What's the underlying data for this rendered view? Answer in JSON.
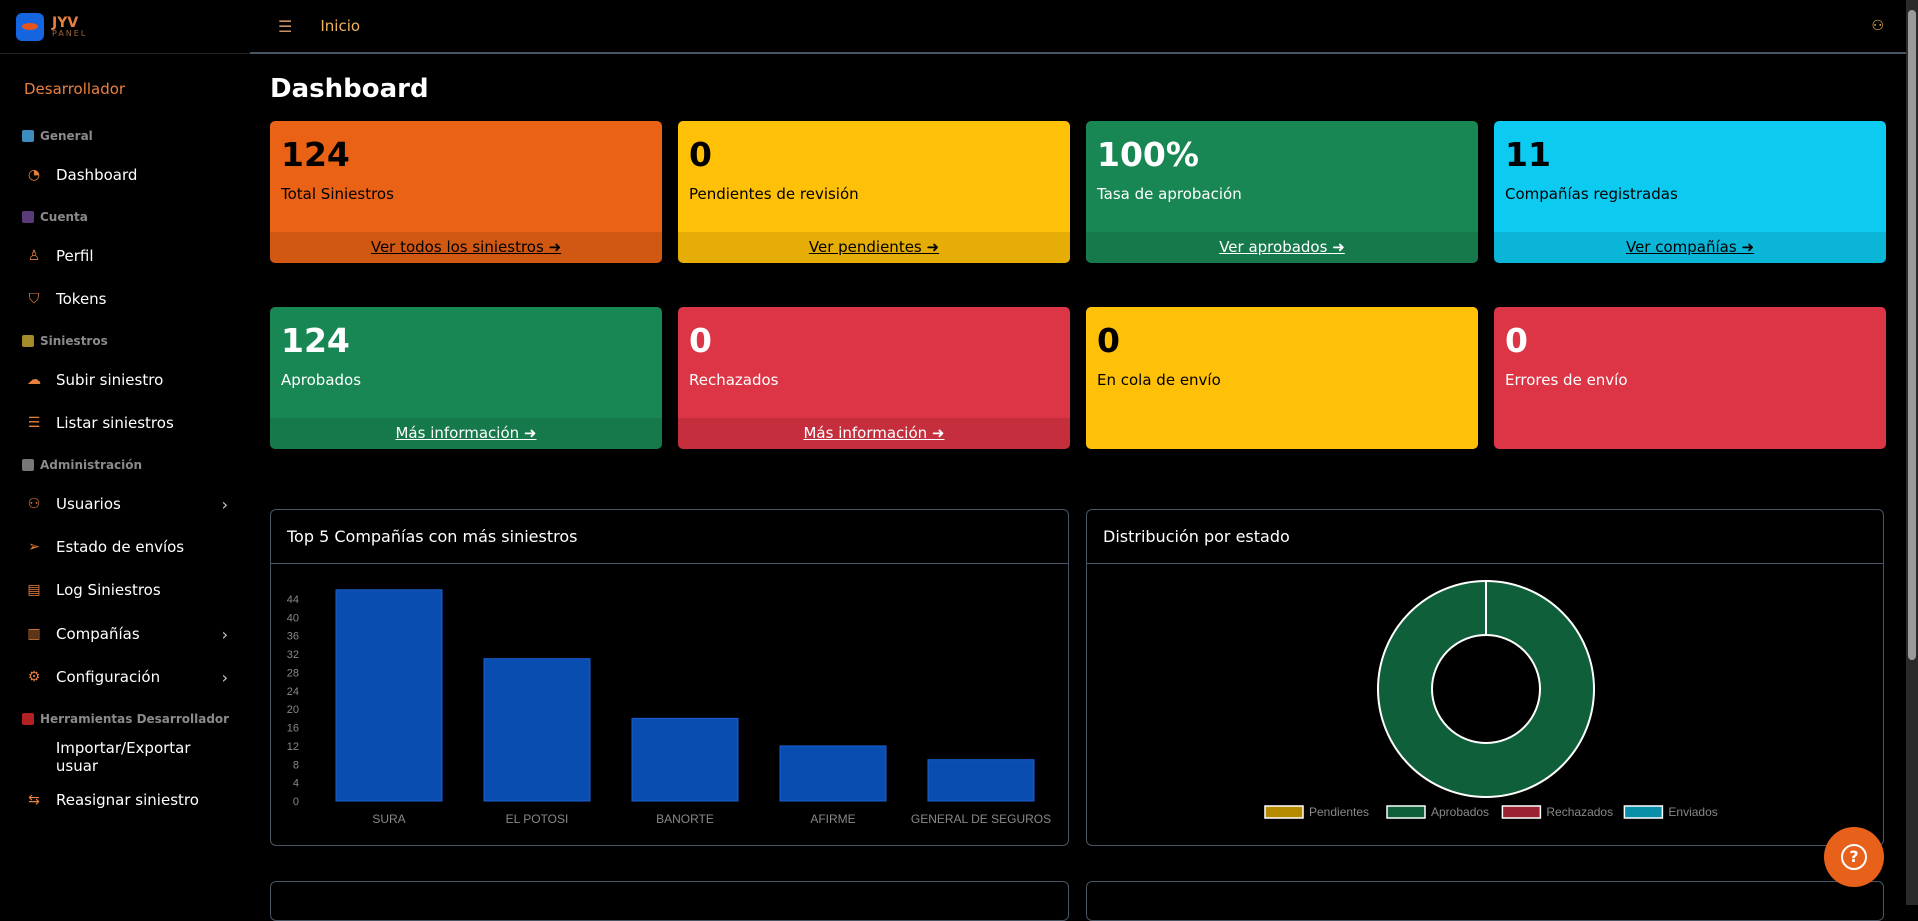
{
  "brand": {
    "title": "JYV",
    "subtitle": "PANEL"
  },
  "sidebar": {
    "role": "Desarrollador",
    "sections": [
      {
        "label": "General",
        "icon": "bar-chart-icon",
        "color": "#3c8dbc"
      },
      {
        "label": "Cuenta",
        "icon": "person-icon",
        "color": "#5b3a7a"
      },
      {
        "label": "Siniestros",
        "icon": "folder-icon",
        "color": "#a58a2a"
      },
      {
        "label": "Administración",
        "icon": "tools-icon",
        "color": "#777777"
      },
      {
        "label": "Herramientas Desarrollador",
        "icon": "toolbox-icon",
        "color": "#b22222"
      }
    ],
    "items": [
      {
        "label": "Dashboard",
        "icon": "speedometer-icon"
      },
      {
        "label": "Perfil",
        "icon": "person-icon"
      },
      {
        "label": "Tokens",
        "icon": "shield-lock-icon"
      },
      {
        "label": "Subir siniestro",
        "icon": "cloud-upload-icon"
      },
      {
        "label": "Listar siniestros",
        "icon": "list-icon"
      },
      {
        "label": "Usuarios",
        "icon": "people-icon",
        "submenu": true
      },
      {
        "label": "Estado de envíos",
        "icon": "send-icon"
      },
      {
        "label": "Log Siniestros",
        "icon": "journal-text-icon"
      },
      {
        "label": "Compañías",
        "icon": "buildings-icon",
        "submenu": true
      },
      {
        "label": "Configuración",
        "icon": "gear-icon",
        "submenu": true
      },
      {
        "label": "Importar/Exportar usuar",
        "icon": "code-icon"
      },
      {
        "label": "Reasignar siniestro",
        "icon": "arrow-left-right-icon"
      }
    ]
  },
  "topbar": {
    "breadcrumb": "Inicio",
    "menu_icon": "hamburger-icon",
    "user_icon": "person-icon"
  },
  "page_title": "Dashboard",
  "cards": [
    {
      "value": "124",
      "label": "Total Siniestros",
      "link": "Ver todos los siniestros",
      "color": "#e96216",
      "text": "#000000"
    },
    {
      "value": "0",
      "label": "Pendientes de revisión",
      "link": "Ver pendientes",
      "color": "#ffc107",
      "text": "#000000"
    },
    {
      "value": "100%",
      "label": "Tasa de aprobación",
      "link": "Ver aprobados",
      "color": "#198754",
      "text": "#ffffff"
    },
    {
      "value": "11",
      "label": "Compañías registradas",
      "link": "Ver compañías",
      "color": "#0dcaf0",
      "text": "#000000"
    },
    {
      "value": "124",
      "label": "Aprobados",
      "link": "Más información",
      "color": "#198754",
      "text": "#ffffff"
    },
    {
      "value": "0",
      "label": "Rechazados",
      "link": "Más información",
      "color": "#dc3545",
      "text": "#ffffff"
    },
    {
      "value": "0",
      "label": "En cola de envío",
      "color": "#ffc107",
      "text": "#000000"
    },
    {
      "value": "0",
      "label": "Errores de envío",
      "color": "#dc3545",
      "text": "#ffffff"
    }
  ],
  "panels": {
    "bar_title": "Top 5 Compañías con más siniestros",
    "donut_title": "Distribución por estado"
  },
  "chart_data": [
    {
      "type": "bar",
      "categories": [
        "SURA",
        "EL POTOSI",
        "BANORTE",
        "AFIRME",
        "GENERAL DE SEGUROS"
      ],
      "values": [
        46,
        31,
        18,
        12,
        9
      ],
      "ylim": [
        0,
        44
      ],
      "yticks": [
        0,
        4,
        8,
        12,
        16,
        20,
        24,
        28,
        32,
        36,
        40,
        44
      ],
      "color": "#0a4db0",
      "grid": false
    },
    {
      "type": "pie",
      "donut": true,
      "labels": [
        "Pendientes",
        "Aprobados",
        "Rechazados",
        "Enviados"
      ],
      "values": [
        0,
        124,
        0,
        0
      ],
      "colors": [
        "#b58900",
        "#0f5f3a",
        "#9b2230",
        "#0a8fa8"
      ],
      "legend": "bottom"
    }
  ]
}
